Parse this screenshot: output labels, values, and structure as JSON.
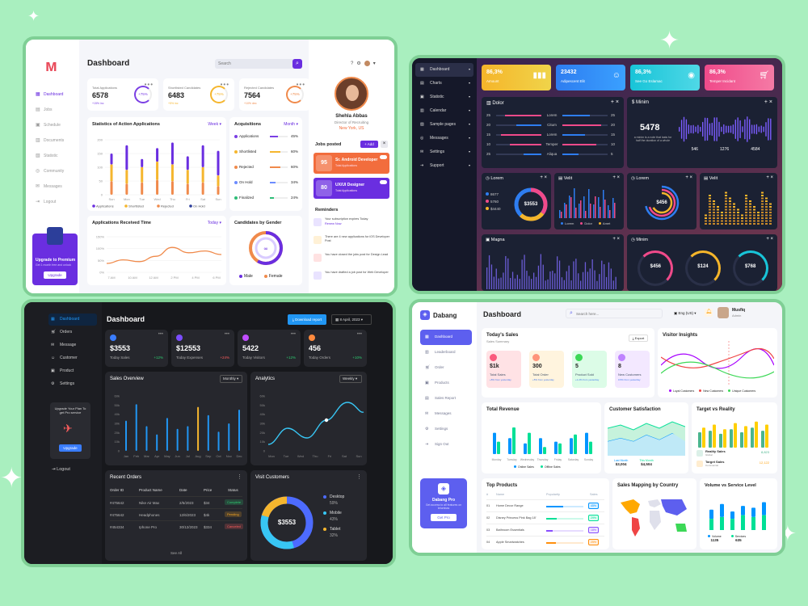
{
  "d1": {
    "title": "Dashboard",
    "search_placeholder": "Search",
    "nav": [
      "Dashboard",
      "Jobs",
      "Schedule",
      "Documents",
      "Statistic",
      "Community",
      "Messages",
      "Logout"
    ],
    "promo": {
      "title": "Upgrade to Premium",
      "sub": "Get 1 month free and unlock",
      "button": "Upgrade"
    },
    "stats": [
      {
        "label": "Total Applications",
        "value": "6578",
        "change": "+15% inc",
        "pct": "+75%",
        "color": "#7b3fe4"
      },
      {
        "label": "Shortlisted Candidates",
        "value": "6483",
        "change": "+5% inc",
        "pct": "+75%",
        "color": "#f5b62e"
      },
      {
        "label": "Rejected Candidates",
        "value": "7564",
        "change": "+10% dec",
        "pct": "+75%",
        "color": "#f08a4b"
      }
    ],
    "stat_chart": {
      "title": "Statistics of Action Applications",
      "filter": "Week",
      "yticks": [
        "200",
        "150",
        "100",
        "50",
        "0"
      ],
      "days": [
        "Sun",
        "Mon",
        "Tue",
        "Wed",
        "Thu",
        "Fri",
        "Sat",
        "Sun"
      ],
      "legend": [
        "Applications",
        "Shortlisted",
        "Rejected",
        "On Hold"
      ],
      "bars": [
        [
          0.75,
          0.55
        ],
        [
          0.9,
          0.45
        ],
        [
          0.65,
          0.5
        ],
        [
          0.85,
          0.6
        ],
        [
          0.95,
          0.55
        ],
        [
          0.7,
          0.45
        ],
        [
          0.9,
          0.5
        ],
        [
          0.8,
          0.35
        ]
      ]
    },
    "acq": {
      "title": "Acquisitions",
      "filter": "Month",
      "items": [
        {
          "label": "Applications",
          "pct": "45%",
          "color": "#7b3fe4",
          "fill": 0.45
        },
        {
          "label": "Shortlisted",
          "pct": "60%",
          "color": "#f5b62e",
          "fill": 0.6
        },
        {
          "label": "Rejected",
          "pct": "60%",
          "color": "#f08a4b",
          "fill": 0.6
        },
        {
          "label": "On Hold",
          "pct": "34%",
          "color": "#6c8cff",
          "fill": 0.34
        },
        {
          "label": "Finalized",
          "pct": "24%",
          "color": "#2ebd77",
          "fill": 0.24
        }
      ]
    },
    "time_chart": {
      "title": "Applications Received Time",
      "filter": "Today",
      "yticks": [
        "150%",
        "100%",
        "50%",
        "0%"
      ],
      "xticks": [
        "7 AM",
        "10 AM",
        "12 AM",
        "2 PM",
        "4 PM",
        "6 PM"
      ],
      "values": [
        0.25,
        0.35,
        0.3,
        0.45,
        0.7,
        0.55,
        0.6,
        0.5
      ]
    },
    "gender": {
      "title": "Candidates by Gender",
      "center": "",
      "male": "Male",
      "female": "Female"
    },
    "profile": {
      "name": "Shehla Abbas",
      "role": "Director of Recruiting",
      "location": "New York, US"
    },
    "jobs": {
      "title": "Jobs posted",
      "add": "+ Add",
      "items": [
        {
          "num": "95",
          "title": "Sr. Android Developer",
          "sub": "Total Applications",
          "color": "#f26d3d"
        },
        {
          "num": "80",
          "title": "UX/UI Designer",
          "sub": "Total Applications",
          "color": "#6a2ee0"
        }
      ]
    },
    "reminders": {
      "title": "Reminders",
      "items": [
        {
          "text": "Your subscription expires Today",
          "link": "Renew Now"
        },
        {
          "text": "There are 4 new applications for iOS Developer Post",
          "link": ""
        },
        {
          "text": "You have closed the jobs post for Design Lead",
          "link": ""
        },
        {
          "text": "You have drafted a job post for Web Developer",
          "link": ""
        }
      ]
    }
  },
  "d2": {
    "nav": [
      "Dashboard",
      "Charts",
      "Statistic",
      "Calendar",
      "Sample pages",
      "Messages",
      "Settings",
      "Support"
    ],
    "kpis": [
      {
        "value": "86,3%",
        "label": "Amount",
        "grad": "#f5b52a,#f0d44a",
        "icon": "bars-icon"
      },
      {
        "value": "23432",
        "label": "Adipescent Elit",
        "grad": "#2e7df0,#3aa0ff",
        "icon": "user-icon"
      },
      {
        "value": "86,3%",
        "label": "See Go Eslamac",
        "grad": "#18c4d8,#4fd8e6",
        "icon": "eye-icon"
      },
      {
        "value": "86,3%",
        "label": "Temper Incidant",
        "grad": "#f04a8a,#f57aa5",
        "icon": "cart-icon"
      }
    ],
    "dolor": {
      "title": "Dolor",
      "left": [
        "25",
        "20",
        "15",
        "10",
        "25"
      ],
      "labels": [
        "Lorem",
        "Citum",
        "Lorem",
        "Temper",
        "Aliqua"
      ],
      "right": [
        "25",
        "20",
        "15",
        "10",
        "5"
      ],
      "lfill": [
        0.8,
        0.55,
        0.9,
        0.7,
        0.4
      ],
      "rfill": [
        0.6,
        0.85,
        0.5,
        0.75,
        0.35
      ]
    },
    "minim": {
      "title": "Minim",
      "value": "5478",
      "desc": "a minim is a note that lasts for half the duration of a whole",
      "stats": [
        "546",
        "1276",
        "4584"
      ]
    },
    "lorem1": {
      "title": "Lorem",
      "value": "$3553",
      "legend": [
        "8677",
        "5760",
        "$4440"
      ]
    },
    "velit1": {
      "title": "Velit",
      "legend": [
        "Lorem",
        "Dolor",
        "Amet"
      ]
    },
    "lorem2": {
      "title": "Lorem",
      "value": "$456"
    },
    "velit2": {
      "title": "Velit"
    },
    "magna": {
      "title": "Magna"
    },
    "minim2": {
      "title": "Minim",
      "values": [
        "$456",
        "$124",
        "$768"
      ]
    }
  },
  "d3": {
    "nav": [
      "Dashboard",
      "Orders",
      "Message",
      "Customer",
      "Product",
      "Settings"
    ],
    "promo": {
      "text": "Upgrade Your Plan To get Pro service",
      "button": "Upgrade"
    },
    "logout": "Logout",
    "title": "Dashboard",
    "download": "Download report",
    "date": "8 April, 2023",
    "stats": [
      {
        "value": "$3553",
        "label": "Today Sales",
        "change": "+12%",
        "color": "#3a7dff",
        "ccolor": "#2ecc71"
      },
      {
        "value": "$12553",
        "label": "Today Expenses",
        "change": "+24%",
        "color": "#7b4dff",
        "ccolor": "#ff5d5d"
      },
      {
        "value": "5422",
        "label": "Today Visitors",
        "change": "+12%",
        "color": "#c04dff",
        "ccolor": "#2ecc71"
      },
      {
        "value": "456",
        "label": "Today Orders",
        "change": "+10%",
        "color": "#ff8a3d",
        "ccolor": "#2ecc71"
      }
    ],
    "overview": {
      "title": "Sales Overview",
      "filter": "Monthly",
      "months": [
        "Jan",
        "Feb",
        "Mar",
        "Apr",
        "May",
        "Jun",
        "Jul",
        "Aug",
        "Sep",
        "Oct",
        "Nov",
        "Dec"
      ],
      "yticks": [
        "60k",
        "50k",
        "40k",
        "30k",
        "20k",
        "10k",
        "0"
      ],
      "values": [
        0.55,
        0.85,
        0.45,
        0.3,
        0.6,
        0.4,
        0.45,
        0.8,
        0.65,
        0.35,
        0.5,
        0.75
      ]
    },
    "analytics": {
      "title": "Analytics",
      "filter": "Weekly",
      "yticks": [
        "60k",
        "50k",
        "40k",
        "30k",
        "20k",
        "10k",
        "0"
      ],
      "days": [
        "Mon",
        "Tue",
        "Wed",
        "Thu",
        "Fri",
        "Sat",
        "Sun"
      ]
    },
    "orders": {
      "title": "Recent Orders",
      "cols": [
        "Order ID",
        "Product Name",
        "Date",
        "Price",
        "Status"
      ],
      "rows": [
        [
          "#475642",
          "Nike Air Max",
          "2/5/2023",
          "$34",
          "Complete",
          "#2ecc71"
        ],
        [
          "#475642",
          "Headphones",
          "12/6/2023",
          "$4k",
          "Pending",
          "#f5a623"
        ],
        [
          "#454334",
          "Iphone Pro",
          "30/12/2023",
          "$334",
          "Canceled",
          "#ff5d5d"
        ]
      ],
      "see_all": "See All"
    },
    "visits": {
      "title": "Visit Customers",
      "center": "$3553",
      "items": [
        {
          "label": "Desktop",
          "pct": "59%",
          "color": "#4d6bff"
        },
        {
          "label": "Mobile",
          "pct": "43%",
          "color": "#38c6f4"
        },
        {
          "label": "Tablet",
          "pct": "32%",
          "color": "#f5b62e"
        }
      ]
    }
  },
  "d4": {
    "brand": "Dabang",
    "title": "Dashboard",
    "search_placeholder": "Search here...",
    "lang": "Eng (US)",
    "user": "Musfiq",
    "user_role": "Admin",
    "nav": [
      "Dashboard",
      "Leaderboard",
      "Order",
      "Products",
      "Sales Report",
      "Messages",
      "Settings",
      "Sign Out"
    ],
    "promo": {
      "title": "Dabang Pro",
      "text": "Get access to all features on tetumbas",
      "button": "Get Pro"
    },
    "sales": {
      "title": "Today's Sales",
      "sub": "Sales Summary",
      "export": "Export",
      "items": [
        {
          "value": "$1k",
          "label": "Total Sales",
          "sub": "+8% from yesterday",
          "bg": "#ffe2e5",
          "ic": "#fa5a7d"
        },
        {
          "value": "300",
          "label": "Total Order",
          "sub": "+5% from yesterday",
          "bg": "#fff4de",
          "ic": "#ff947a"
        },
        {
          "value": "5",
          "label": "Product Sold",
          "sub": "+1.2% from yesterday",
          "bg": "#dcfce7",
          "ic": "#3cd856"
        },
        {
          "value": "8",
          "label": "New Customers",
          "sub": "0.5% from yesterday",
          "bg": "#f3e8ff",
          "ic": "#bf83ff"
        }
      ]
    },
    "visitor": {
      "title": "Visitor Insights",
      "legend": [
        "Loyal Customers",
        "New Customers",
        "Unique Customers"
      ]
    },
    "revenue": {
      "title": "Total Revenue",
      "days": [
        "Monday",
        "Tuesday",
        "Wednesday",
        "Thursday",
        "Friday",
        "Saturday",
        "Sunday"
      ],
      "legend": [
        "Online Sales",
        "Offline Sales"
      ],
      "a": [
        0.6,
        0.45,
        0.3,
        0.45,
        0.35,
        0.45,
        0.6
      ],
      "b": [
        0.35,
        0.75,
        0.6,
        0.2,
        0.3,
        0.55,
        0.35
      ]
    },
    "satisfaction": {
      "title": "Customer Satisfaction",
      "legend": [
        "Last Month",
        "This Month"
      ],
      "vals": [
        "$3,004",
        "$4,504"
      ]
    },
    "target": {
      "title": "Target vs Reality",
      "items": [
        {
          "label": "Reality Sales",
          "sub": "Global",
          "val": "8,823"
        },
        {
          "label": "Target Sales",
          "sub": "Commercial",
          "val": "12,122"
        }
      ],
      "a": [
        0.5,
        0.55,
        0.45,
        0.6,
        0.5,
        0.65,
        0.55
      ],
      "b": [
        0.65,
        0.75,
        0.6,
        0.8,
        0.7,
        0.85,
        0.75
      ]
    },
    "products": {
      "title": "Top Products",
      "cols": [
        "#",
        "Name",
        "Popularity",
        "Sales"
      ],
      "rows": [
        [
          "01",
          "Home Decor Range",
          "45%",
          "#0095ff"
        ],
        [
          "02",
          "Disney Princess Pink Bag 18'",
          "29%",
          "#00e096"
        ],
        [
          "03",
          "Bathroom Essentials",
          "18%",
          "#884dff"
        ],
        [
          "04",
          "Apple Smartwatches",
          "25%",
          "#ff8f0d"
        ]
      ]
    },
    "map": {
      "title": "Sales Mapping by Country"
    },
    "volume": {
      "title": "Volume vs Service Level",
      "legend": [
        "Volume",
        "Services"
      ],
      "vals": [
        "1135",
        "635"
      ],
      "a": [
        0.55,
        0.7,
        0.5,
        0.65,
        0.6,
        0.75
      ],
      "b": [
        0.3,
        0.35,
        0.3,
        0.4,
        0.35,
        0.4
      ]
    }
  }
}
